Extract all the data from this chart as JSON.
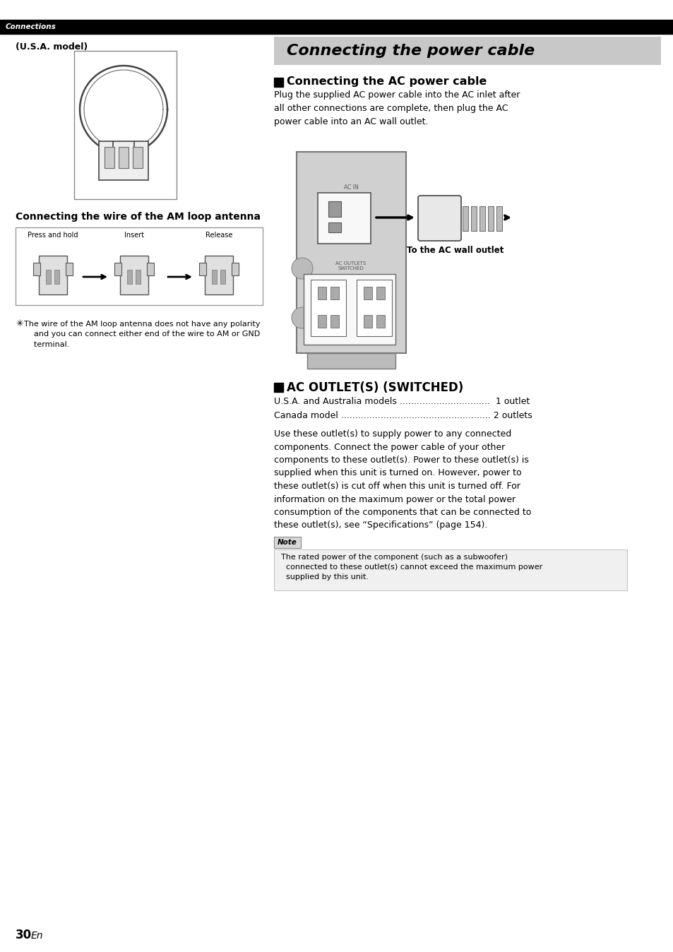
{
  "page_bg": "#ffffff",
  "header_bg": "#000000",
  "header_text": "Connections",
  "header_text_color": "#ffffff",
  "section_title_bg": "#c8c8c8",
  "section_title": "Connecting the power cable",
  "section_title_color": "#000000",
  "left_subtitle": "(U.S.A. model)",
  "am_antenna_title": "Connecting the wire of the AM loop antenna",
  "press_hold_label": "Press and hold",
  "insert_label": "Insert",
  "release_label": "Release",
  "tip_text": "    The wire of the AM loop antenna does not have any polarity\n    and you can connect either end of the wire to AM or GND\n    terminal.",
  "subsection1_title": "  Connecting the AC power cable",
  "subsection1_body": "Plug the supplied AC power cable into the AC inlet after\nall other connections are complete, then plug the AC\npower cable into an AC wall outlet.",
  "ac_in_label": "AC IN",
  "ac_outlet_label": "To the AC wall outlet",
  "ac_outlets_label": "AC OUTLETS\nSWITCHED",
  "subsection2_title": "  AC OUTLET(S) (SWITCHED)",
  "usa_line": "U.S.A. and Australia models ................................  1 outlet",
  "canada_line": "Canada model ..................................................... 2 outlets",
  "subsection2_body": "Use these outlet(s) to supply power to any connected\ncomponents. Connect the power cable of your other\ncomponents to these outlet(s). Power to these outlet(s) is\nsupplied when this unit is turned on. However, power to\nthese outlet(s) is cut off when this unit is turned off. For\ninformation on the maximum power or the total power\nconsumption of the components that can be connected to\nthese outlet(s), see “Specifications” (page 154).",
  "note_label": "Note",
  "note_text": "  The rated power of the component (such as a subwoofer)\n  connected to these outlet(s) cannot exceed the maximum power\n  supplied by this unit.",
  "page_number": "30",
  "page_en": "En"
}
